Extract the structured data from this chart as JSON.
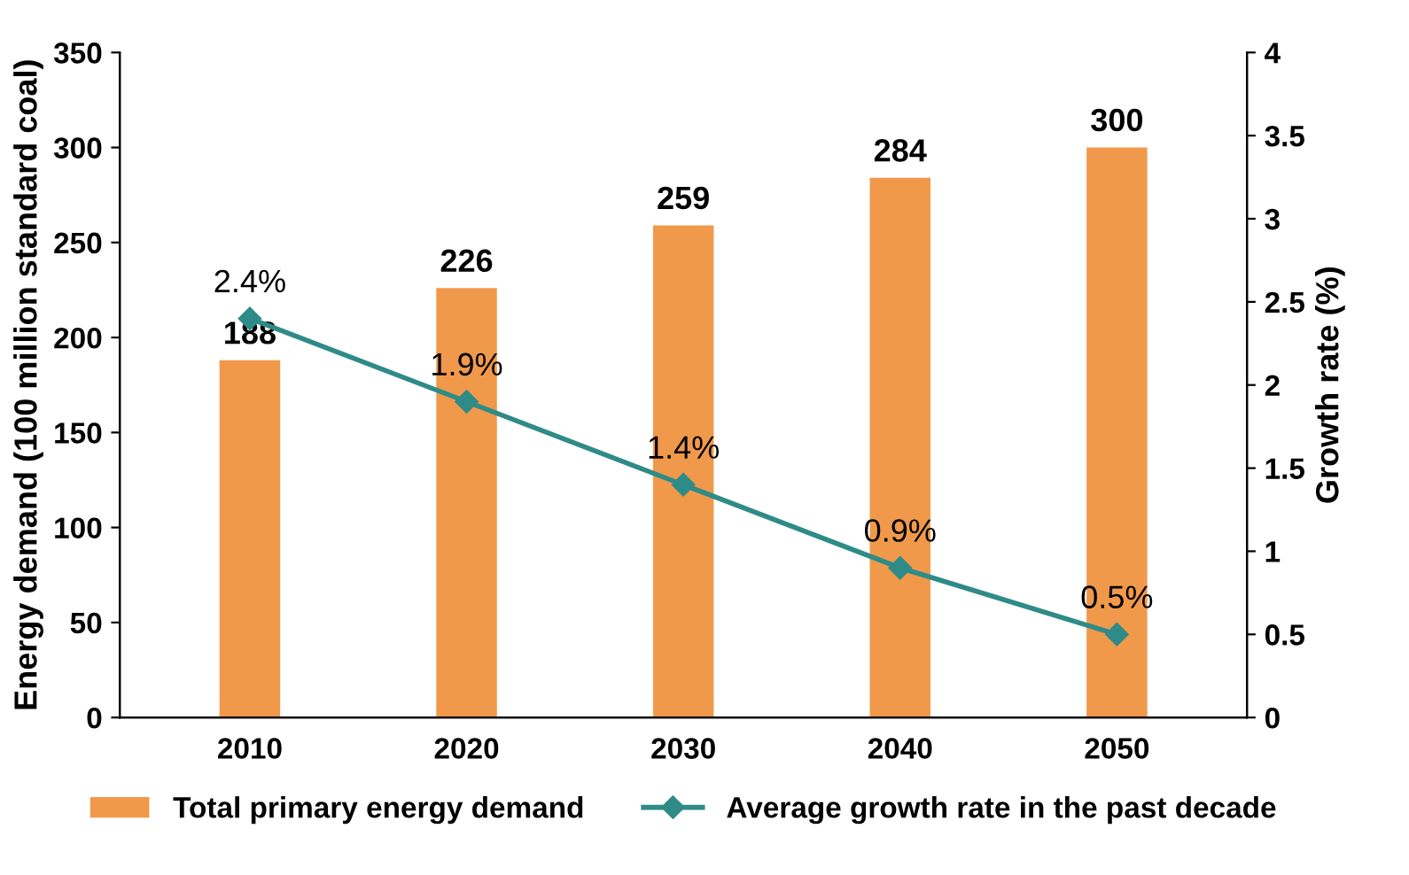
{
  "chart_data": {
    "type": "bar",
    "categories": [
      "2010",
      "2020",
      "2030",
      "2040",
      "2050"
    ],
    "ylabel": "Energy demand (100 million standard coal)",
    "y2label": "Growth rate (%)",
    "ylim": [
      0,
      350
    ],
    "yticks": [
      0,
      50,
      100,
      150,
      200,
      250,
      300,
      350
    ],
    "y2lim": [
      0,
      4
    ],
    "y2ticks": [
      0,
      0.5,
      1,
      1.5,
      2,
      2.5,
      3,
      3.5,
      4
    ],
    "series": [
      {
        "name": "Total primary energy demand",
        "color": "#f0994a",
        "values": [
          188,
          226,
          259,
          284,
          300
        ],
        "value_labels": [
          "188",
          "226",
          "259",
          "284",
          "300"
        ]
      },
      {
        "name": "Average growth rate in the past decade",
        "type": "line",
        "axis": "y2",
        "color": "#2e8b88",
        "marker": "diamond",
        "values": [
          2.4,
          1.9,
          1.4,
          0.9,
          0.5
        ],
        "value_labels": [
          "2.4%",
          "1.9%",
          "1.4%",
          "0.9%",
          "0.5%"
        ]
      }
    ],
    "legend": "bottom",
    "grid": false
  }
}
